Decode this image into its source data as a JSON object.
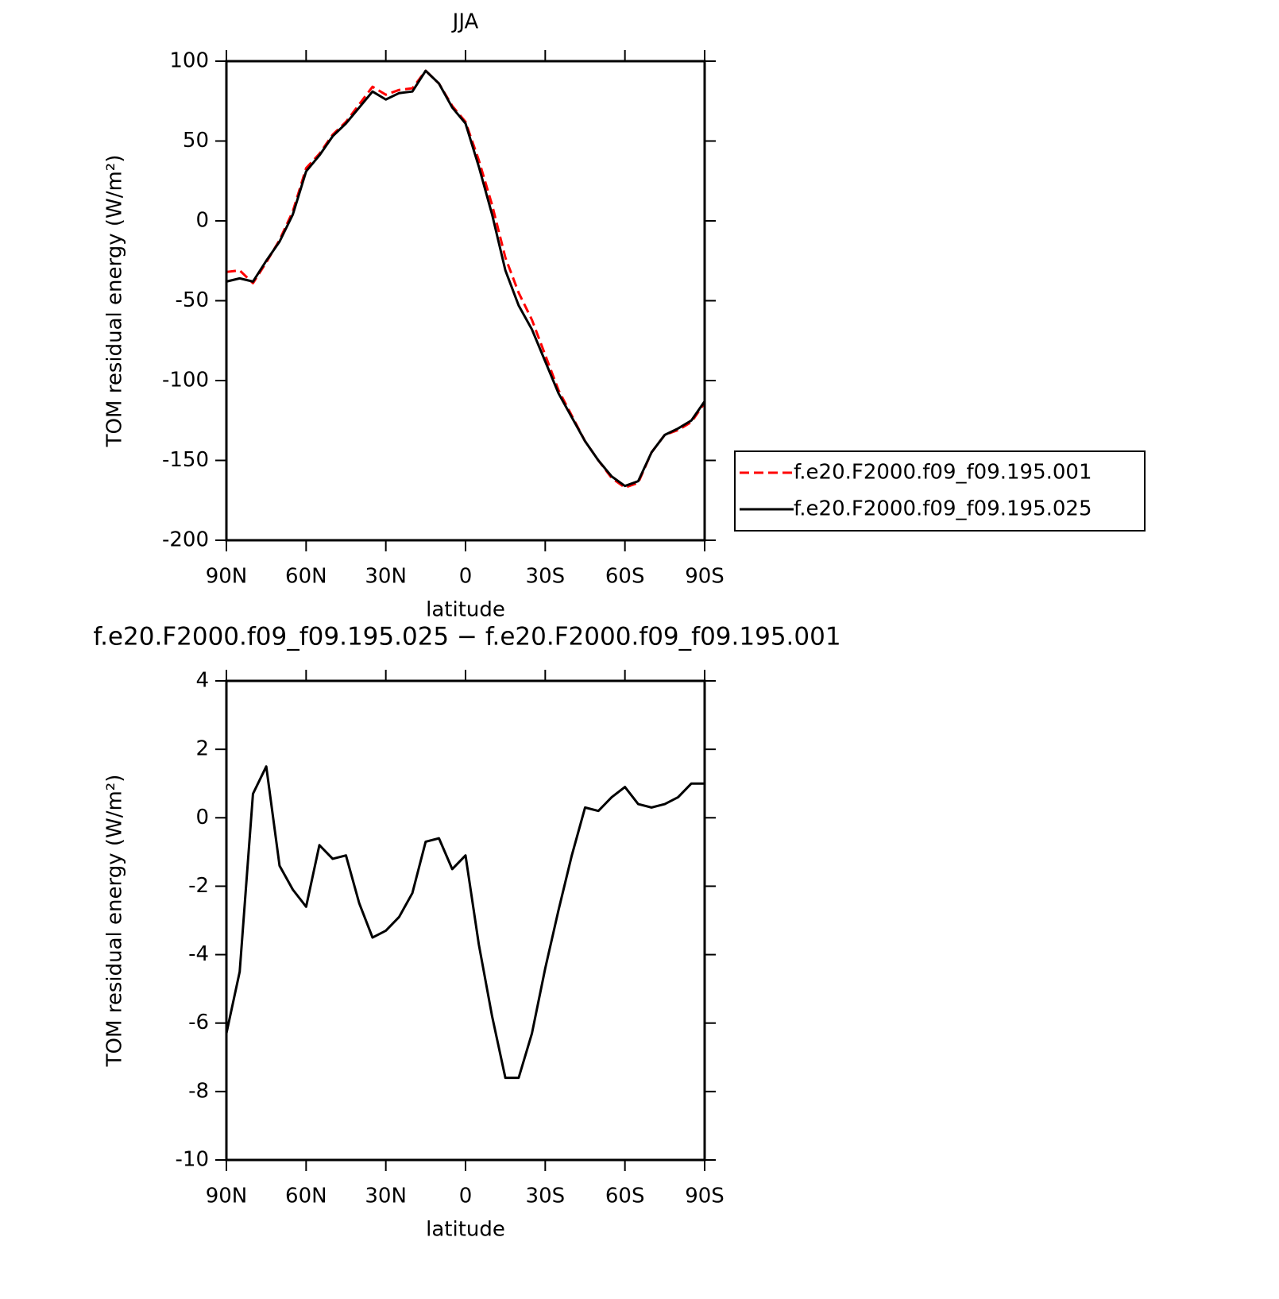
{
  "chart_data": [
    {
      "type": "line",
      "title": "JJA",
      "xlabel": "latitude",
      "ylabel": "TOM residual energy (W/m²)",
      "x": [
        90,
        85,
        80,
        75,
        70,
        65,
        60,
        55,
        50,
        45,
        40,
        35,
        30,
        25,
        20,
        15,
        10,
        5,
        0,
        -5,
        -10,
        -15,
        -20,
        -25,
        -30,
        -35,
        -40,
        -45,
        -50,
        -55,
        -60,
        -65,
        -70,
        -75,
        -80,
        -85,
        -90
      ],
      "xlim": [
        90,
        -90
      ],
      "xticks": [
        {
          "value": 90,
          "label": "90N"
        },
        {
          "value": 60,
          "label": "60N"
        },
        {
          "value": 30,
          "label": "30N"
        },
        0,
        {
          "value": -30,
          "label": "30S"
        },
        {
          "value": -60,
          "label": "60S"
        },
        {
          "value": -90,
          "label": "90S"
        }
      ],
      "ylim": [
        -200,
        100
      ],
      "yticks": [
        -200,
        -150,
        -100,
        -50,
        0,
        50,
        100
      ],
      "legend": "right",
      "series": [
        {
          "name": "f.e20.F2000.f09_f09.195.001",
          "color": "#ff0000",
          "dashed": true,
          "values": [
            -32,
            -31,
            -39,
            -26,
            -12,
            6,
            33,
            42,
            54,
            62,
            73,
            84,
            79,
            82,
            83,
            94,
            86,
            72,
            62,
            38,
            10,
            -23,
            -45,
            -62,
            -84,
            -106,
            -122,
            -138,
            -150,
            -161,
            -167,
            -164,
            -145,
            -134,
            -131,
            -126,
            -114
          ]
        },
        {
          "name": "f.e20.F2000.f09_f09.195.025",
          "color": "#000000",
          "dashed": false,
          "values": [
            -38,
            -36,
            -38,
            -25,
            -13,
            4,
            31,
            41,
            53,
            61,
            71,
            81,
            76,
            80,
            81,
            94,
            86,
            71,
            61,
            34,
            4,
            -31,
            -53,
            -68,
            -88,
            -108,
            -123,
            -138,
            -150,
            -160,
            -166,
            -163,
            -145,
            -134,
            -130,
            -125,
            -113
          ]
        }
      ]
    },
    {
      "type": "line",
      "title": "f.e20.F2000.f09_f09.195.025 − f.e20.F2000.f09_f09.195.001",
      "xlabel": "latitude",
      "ylabel": "TOM residual energy (W/m²)",
      "x": [
        90,
        85,
        80,
        75,
        70,
        65,
        60,
        55,
        50,
        45,
        40,
        35,
        30,
        25,
        20,
        15,
        10,
        5,
        0,
        -5,
        -10,
        -15,
        -20,
        -25,
        -30,
        -35,
        -40,
        -45,
        -50,
        -55,
        -60,
        -65,
        -70,
        -75,
        -80,
        -85,
        -90
      ],
      "xlim": [
        90,
        -90
      ],
      "xticks": [
        {
          "value": 90,
          "label": "90N"
        },
        {
          "value": 60,
          "label": "60N"
        },
        {
          "value": 30,
          "label": "30N"
        },
        0,
        {
          "value": -30,
          "label": "30S"
        },
        {
          "value": -60,
          "label": "60S"
        },
        {
          "value": -90,
          "label": "90S"
        }
      ],
      "ylim": [
        -10,
        4
      ],
      "yticks": [
        -10,
        -8,
        -6,
        -4,
        -2,
        0,
        2,
        4
      ],
      "series": [
        {
          "color": "#000000",
          "dashed": false,
          "values": [
            -6.3,
            -4.5,
            0.7,
            1.5,
            -1.4,
            -2.1,
            -2.6,
            -0.8,
            -1.2,
            -1.1,
            -2.5,
            -3.5,
            -3.3,
            -2.9,
            -2.2,
            -0.7,
            -0.6,
            -1.5,
            -1.1,
            -3.7,
            -5.8,
            -7.6,
            -7.6,
            -6.3,
            -4.4,
            -2.7,
            -1.1,
            0.3,
            0.2,
            0.6,
            0.9,
            0.4,
            0.3,
            0.4,
            0.6,
            1.0,
            1.0
          ]
        }
      ]
    }
  ]
}
